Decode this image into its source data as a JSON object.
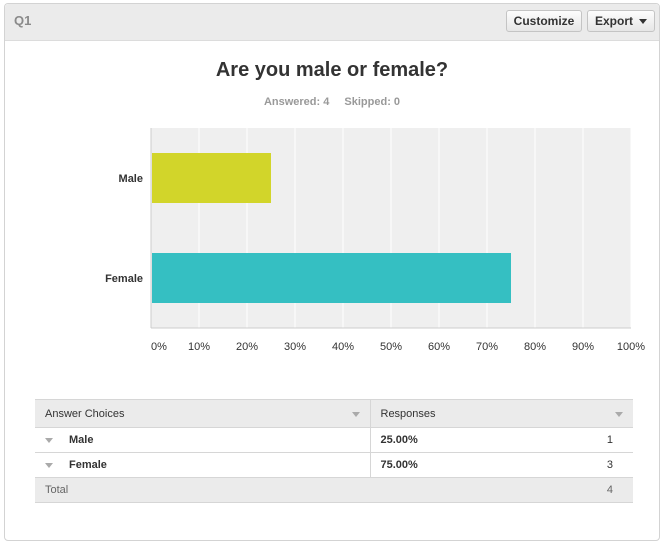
{
  "header": {
    "question_label": "Q1",
    "customize_label": "Customize",
    "export_label": "Export"
  },
  "question": {
    "title": "Are you male or female?",
    "answered_text": "Answered: 4",
    "skipped_text": "Skipped: 0"
  },
  "colors": {
    "male": "#d2d52a",
    "female": "#35bfc2",
    "plot_bg": "#efefef"
  },
  "chart_data": {
    "type": "bar",
    "orientation": "horizontal",
    "categories": [
      "Male",
      "Female"
    ],
    "values": [
      25,
      75
    ],
    "xlim": [
      0,
      100
    ],
    "xticks": [
      "0%",
      "10%",
      "20%",
      "30%",
      "40%",
      "50%",
      "60%",
      "70%",
      "80%",
      "90%",
      "100%"
    ],
    "grid": true
  },
  "table": {
    "headers": [
      "Answer Choices",
      "Responses"
    ],
    "rows": [
      {
        "choice": "Male",
        "percent": "25.00%",
        "count": "1"
      },
      {
        "choice": "Female",
        "percent": "75.00%",
        "count": "3"
      }
    ],
    "total_label": "Total",
    "total_count": "4"
  }
}
